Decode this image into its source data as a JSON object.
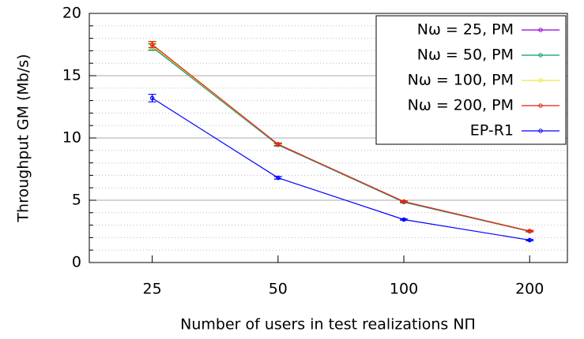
{
  "chart_data": {
    "type": "line",
    "y_label": "Throughput GM (Mb/s)",
    "x_label": "Number of users in test realizations NΠ",
    "categories": [
      "25",
      "50",
      "100",
      "200"
    ],
    "ylim": [
      0,
      20
    ],
    "yticks": [
      0,
      5,
      10,
      15,
      20
    ],
    "y_minor_ticks": [
      1,
      2,
      3,
      4,
      6,
      7,
      8,
      9,
      11,
      12,
      13,
      14,
      16,
      17,
      18,
      19
    ],
    "grid": true,
    "legend": "upper right",
    "series": [
      {
        "name": "Nω = 25, PM",
        "color": "#9400d3",
        "values": [
          17.3,
          9.45,
          4.85,
          2.5
        ],
        "errors": [
          0.25,
          0.1,
          0.05,
          0.05
        ]
      },
      {
        "name": "Nω = 50, PM",
        "color": "#009e73",
        "values": [
          17.3,
          9.45,
          4.85,
          2.5
        ],
        "errors": [
          0.25,
          0.1,
          0.05,
          0.05
        ]
      },
      {
        "name": "Nω = 100, PM",
        "color": "#f0e442",
        "values": [
          17.4,
          9.5,
          4.9,
          2.52
        ],
        "errors": [
          0.25,
          0.1,
          0.05,
          0.05
        ]
      },
      {
        "name": "Nω = 200, PM",
        "color": "#e51e10",
        "values": [
          17.5,
          9.5,
          4.9,
          2.53
        ],
        "errors": [
          0.25,
          0.1,
          0.05,
          0.05
        ]
      },
      {
        "name": "EP-R1",
        "color": "#0000ff",
        "values": [
          13.2,
          6.8,
          3.45,
          1.8
        ],
        "errors": [
          0.3,
          0.1,
          0.05,
          0.05
        ]
      }
    ]
  }
}
